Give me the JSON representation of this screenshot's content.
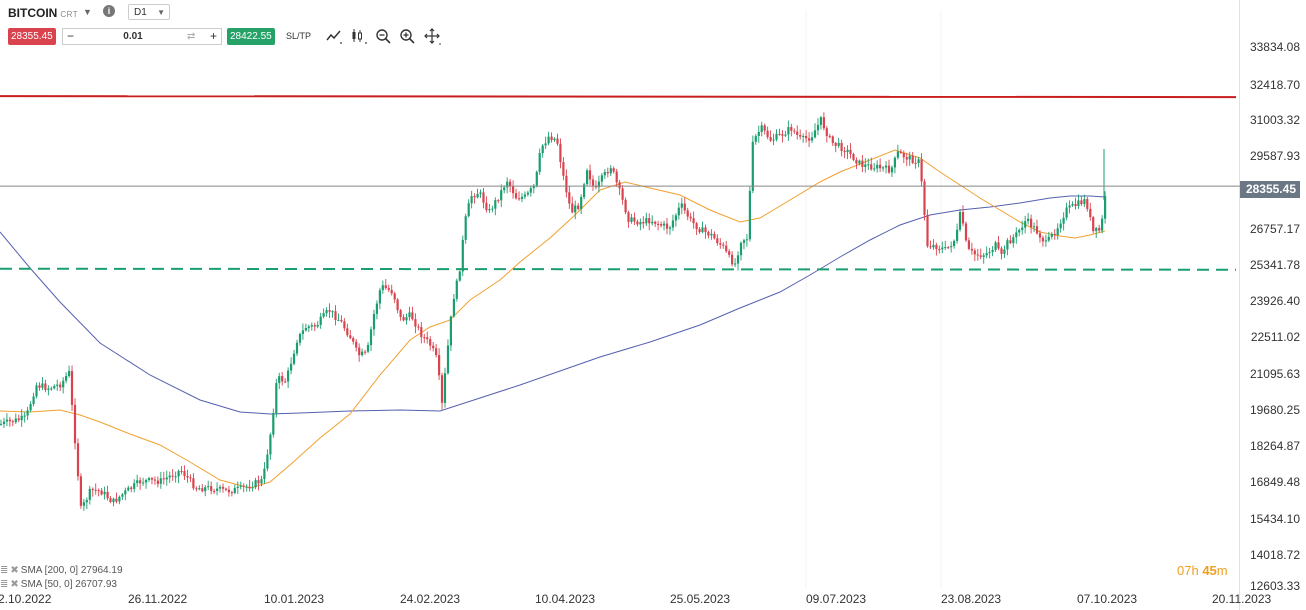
{
  "header": {
    "symbol": "BITCOIN",
    "symbol_type": "CRT",
    "timeframe": "D1",
    "sell_price": "28355.45",
    "quantity": "0.01",
    "buy_price": "28422.55",
    "sl_tp_label": "SL/TP",
    "quantity_minus": "−",
    "quantity_plus": "+",
    "info_glyph": "i"
  },
  "price_axis": {
    "labels": [
      "33834.08",
      "32418.70",
      "31003.32",
      "29587.93",
      "28355.45",
      "26757.17",
      "25341.78",
      "23926.40",
      "22511.02",
      "21095.63",
      "19680.25",
      "18264.87",
      "16849.48",
      "15434.10",
      "14018.72",
      "12603.33"
    ],
    "current_price": "28355.45"
  },
  "date_axis": {
    "labels": [
      "2.10.2022",
      "26.11.2022",
      "10.01.2023",
      "24.02.2023",
      "10.04.2023",
      "25.05.2023",
      "09.07.2023",
      "23.08.2023",
      "07.10.2023",
      "20.11.2023"
    ]
  },
  "indicators": [
    {
      "text": "SMA [200, 0] 27964.19",
      "color": "#5560b0"
    },
    {
      "text": "SMA [50, 0] 26707.93",
      "color": "#f0a030"
    }
  ],
  "timer": {
    "hours": "07",
    "h": "h",
    "minutes": "45",
    "m": "m"
  },
  "colors": {
    "resistance_line": "#c81e1e",
    "support_line": "#1a9e6e",
    "bull_candle": "#1a9e6e",
    "bear_candle": "#d9434e",
    "sma200": "#5560b0",
    "sma50": "#f0a030",
    "price_line": "#888888"
  },
  "toolbar_icons": [
    "line-chart-icon",
    "candles-icon",
    "zoom-out-icon",
    "zoom-in-icon",
    "crosshair-icon"
  ],
  "chart_data": {
    "type": "candlestick",
    "x_labels": [
      "2.10.2022",
      "26.11.2022",
      "10.01.2023",
      "24.02.2023",
      "10.04.2023",
      "25.05.2023",
      "09.07.2023",
      "23.08.2023",
      "07.10.2023",
      "20.11.2023"
    ],
    "y_range": [
      12603.33,
      33834.08
    ],
    "key_prices": [
      {
        "date": "2.10.2022",
        "price": 19400
      },
      {
        "date": "10.11.2022",
        "price": 15800
      },
      {
        "date": "26.11.2022",
        "price": 16500
      },
      {
        "date": "10.01.2023",
        "price": 17600
      },
      {
        "date": "20.01.2023",
        "price": 21000
      },
      {
        "date": "24.02.2023",
        "price": 23300
      },
      {
        "date": "10.03.2023",
        "price": 19700
      },
      {
        "date": "24.03.2023",
        "price": 27500
      },
      {
        "date": "14.04.2023",
        "price": 30400
      },
      {
        "date": "10.05.2023",
        "price": 27500
      },
      {
        "date": "25.05.2023",
        "price": 26300
      },
      {
        "date": "15.06.2023",
        "price": 25400
      },
      {
        "date": "09.07.2023",
        "price": 30300
      },
      {
        "date": "01.08.2023",
        "price": 29300
      },
      {
        "date": "17.08.2023",
        "price": 26100
      },
      {
        "date": "23.08.2023",
        "price": 26000
      },
      {
        "date": "11.09.2023",
        "price": 25200
      },
      {
        "date": "07.10.2023",
        "price": 27900
      },
      {
        "date": "12.10.2023",
        "price": 26800
      },
      {
        "date": "16.10.2023",
        "price": 28355.45
      }
    ],
    "resistance": 31900,
    "support": 25100,
    "sma200": {
      "name": "SMA [200, 0]",
      "last": 27964.19
    },
    "sma50": {
      "name": "SMA [50, 0]",
      "last": 26707.93
    }
  }
}
